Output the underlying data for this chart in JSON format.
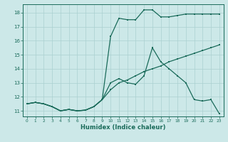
{
  "xlabel": "Humidex (Indice chaleur)",
  "background_color": "#cce8e8",
  "grid_color": "#aad0d0",
  "line_color": "#1a6b5a",
  "xlim": [
    -0.5,
    23.5
  ],
  "ylim": [
    10.6,
    18.6
  ],
  "yticks": [
    11,
    12,
    13,
    14,
    15,
    16,
    17,
    18
  ],
  "xticks": [
    0,
    1,
    2,
    3,
    4,
    5,
    6,
    7,
    8,
    9,
    10,
    11,
    12,
    13,
    14,
    15,
    16,
    17,
    18,
    19,
    20,
    21,
    22,
    23
  ],
  "series1_x": [
    0,
    1,
    2,
    3,
    4,
    5,
    6,
    7,
    8,
    9,
    10,
    11,
    12,
    13,
    14,
    15,
    16,
    17,
    18,
    19,
    20,
    21,
    22,
    23
  ],
  "series1_y": [
    11.5,
    11.6,
    11.5,
    11.3,
    11.0,
    11.1,
    11.0,
    11.05,
    11.3,
    11.8,
    12.5,
    13.0,
    13.2,
    13.5,
    13.8,
    14.0,
    14.2,
    14.5,
    14.7,
    14.9,
    15.1,
    15.3,
    15.5,
    15.7
  ],
  "series2_x": [
    0,
    1,
    2,
    3,
    4,
    5,
    6,
    7,
    8,
    9,
    10,
    11,
    12,
    13,
    14,
    15,
    16,
    17,
    18,
    19,
    20,
    21,
    22,
    23
  ],
  "series2_y": [
    11.5,
    11.6,
    11.5,
    11.3,
    11.0,
    11.1,
    11.0,
    11.05,
    11.3,
    11.8,
    13.0,
    13.3,
    13.0,
    12.9,
    13.5,
    15.5,
    14.5,
    14.0,
    13.5,
    13.0,
    11.8,
    11.7,
    11.8,
    10.8
  ],
  "series3_x": [
    0,
    1,
    2,
    3,
    4,
    5,
    6,
    7,
    8,
    9,
    10,
    11,
    12,
    13,
    14,
    15,
    16,
    17,
    18,
    19,
    20,
    21,
    22,
    23
  ],
  "series3_y": [
    11.5,
    11.6,
    11.5,
    11.3,
    11.0,
    11.1,
    11.0,
    11.05,
    11.3,
    11.8,
    16.3,
    17.6,
    17.5,
    17.5,
    18.2,
    18.2,
    17.7,
    17.7,
    17.8,
    17.9,
    17.9,
    17.9,
    17.9,
    17.9
  ]
}
